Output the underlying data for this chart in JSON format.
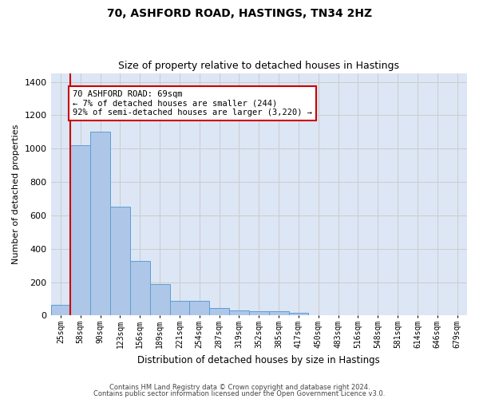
{
  "title1": "70, ASHFORD ROAD, HASTINGS, TN34 2HZ",
  "title2": "Size of property relative to detached houses in Hastings",
  "xlabel": "Distribution of detached houses by size in Hastings",
  "ylabel": "Number of detached properties",
  "bar_labels": [
    "25sqm",
    "58sqm",
    "90sqm",
    "123sqm",
    "156sqm",
    "189sqm",
    "221sqm",
    "254sqm",
    "287sqm",
    "319sqm",
    "352sqm",
    "385sqm",
    "417sqm",
    "450sqm",
    "483sqm",
    "516sqm",
    "548sqm",
    "581sqm",
    "614sqm",
    "646sqm",
    "679sqm"
  ],
  "bar_values": [
    62,
    1020,
    1100,
    650,
    325,
    190,
    90,
    90,
    47,
    30,
    25,
    25,
    15,
    0,
    0,
    0,
    0,
    0,
    0,
    0,
    0
  ],
  "bar_color": "#aec6e8",
  "bar_edge_color": "#5a9fd4",
  "vline_color": "#cc0000",
  "annotation_text": "70 ASHFORD ROAD: 69sqm\n← 7% of detached houses are smaller (244)\n92% of semi-detached houses are larger (3,220) →",
  "annotation_box_color": "#ffffff",
  "annotation_box_edge": "#cc0000",
  "ylim": [
    0,
    1450
  ],
  "yticks": [
    0,
    200,
    400,
    600,
    800,
    1000,
    1200,
    1400
  ],
  "grid_color": "#cccccc",
  "bg_color": "#dce6f5",
  "fig_color": "#ffffff",
  "footer1": "Contains HM Land Registry data © Crown copyright and database right 2024.",
  "footer2": "Contains public sector information licensed under the Open Government Licence v3.0."
}
